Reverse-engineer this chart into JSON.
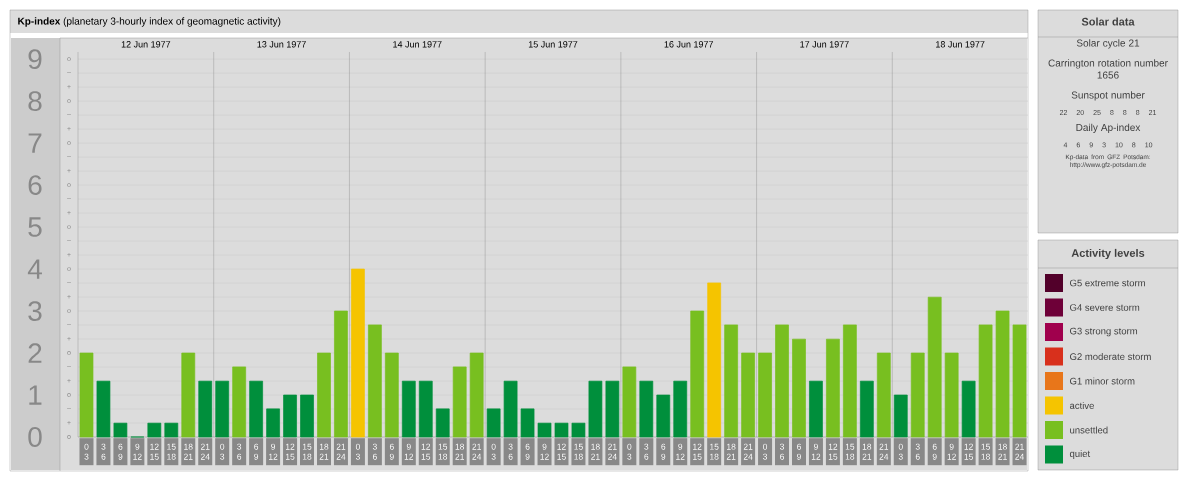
{
  "chart_data": [
    {
      "type": "bar",
      "title": "**Kp-index**  (planetary 3-hourly index of geomagnetic activity)",
      "categories": [
        "0 3",
        "3 6",
        "6 9",
        "9 12",
        "12 15",
        "15 18",
        "18 21",
        "21 24",
        "0 3",
        "3 6",
        "6 9",
        "9 12",
        "12 15",
        "15 18",
        "18 21",
        "21 24",
        "0 3",
        "3 6",
        "6 9",
        "9 12",
        "12 15",
        "15 18",
        "18 21",
        "21 24",
        "0 3",
        "3 6",
        "6 9",
        "9 12",
        "12 15",
        "15 18",
        "18 21",
        "21 24",
        "0 3",
        "3 6",
        "6 9",
        "9 12",
        "12 15",
        "15 18",
        "18 21",
        "21 24",
        "0 3",
        "3 6",
        "6 9",
        "9 12",
        "12 15",
        "15 18",
        "18 21",
        "21 24",
        "0 3",
        "3 6",
        "6 9",
        "9 12",
        "12 15",
        "15 18",
        "18 21",
        "21 24"
      ],
      "series": [
        {
          "name": "G5 extreme storm",
          "color": "#52002a",
          "values": [
            null,
            null,
            null,
            null,
            null,
            null,
            null,
            null,
            null,
            null,
            null,
            null,
            null,
            null,
            null,
            null,
            null,
            null,
            null,
            null,
            null,
            null,
            null,
            null,
            null,
            null,
            null,
            null,
            null,
            null,
            null,
            null,
            null,
            null,
            null,
            null,
            null,
            null,
            null,
            null,
            null,
            null,
            null,
            null,
            null,
            null,
            null,
            null,
            null,
            null,
            null,
            null,
            null,
            null,
            null,
            null
          ]
        },
        {
          "name": "G4 severe storm",
          "color": "#6e0038",
          "values": [
            null,
            null,
            null,
            null,
            null,
            null,
            null,
            null,
            null,
            null,
            null,
            null,
            null,
            null,
            null,
            null,
            null,
            null,
            null,
            null,
            null,
            null,
            null,
            null,
            null,
            null,
            null,
            null,
            null,
            null,
            null,
            null,
            null,
            null,
            null,
            null,
            null,
            null,
            null,
            null,
            null,
            null,
            null,
            null,
            null,
            null,
            null,
            null,
            null,
            null,
            null,
            null,
            null,
            null,
            null,
            null
          ]
        },
        {
          "name": "G3 strong storm",
          "color": "#a0004d",
          "values": [
            null,
            null,
            null,
            null,
            null,
            null,
            null,
            null,
            null,
            null,
            null,
            null,
            null,
            null,
            null,
            null,
            null,
            null,
            null,
            null,
            null,
            null,
            null,
            null,
            null,
            null,
            null,
            null,
            null,
            null,
            null,
            null,
            null,
            null,
            null,
            null,
            null,
            null,
            null,
            null,
            null,
            null,
            null,
            null,
            null,
            null,
            null,
            null,
            null,
            null,
            null,
            null,
            null,
            null,
            null,
            null
          ]
        },
        {
          "name": "G2 moderate storm",
          "color": "#d8301c",
          "values": [
            null,
            null,
            null,
            null,
            null,
            null,
            null,
            null,
            null,
            null,
            null,
            null,
            null,
            null,
            null,
            null,
            null,
            null,
            null,
            null,
            null,
            null,
            null,
            null,
            null,
            null,
            null,
            null,
            null,
            null,
            null,
            null,
            null,
            null,
            null,
            null,
            null,
            null,
            null,
            null,
            null,
            null,
            null,
            null,
            null,
            null,
            null,
            null,
            null,
            null,
            null,
            null,
            null,
            null,
            null,
            null
          ]
        },
        {
          "name": "G1 minor storm",
          "color": "#e8761a",
          "values": [
            null,
            null,
            null,
            null,
            null,
            null,
            null,
            null,
            null,
            null,
            null,
            null,
            null,
            null,
            null,
            null,
            null,
            null,
            null,
            null,
            null,
            null,
            null,
            null,
            null,
            null,
            null,
            null,
            null,
            null,
            null,
            null,
            null,
            null,
            null,
            null,
            null,
            null,
            null,
            null,
            null,
            null,
            null,
            null,
            null,
            null,
            null,
            null,
            null,
            null,
            null,
            null,
            null,
            null,
            null,
            null
          ]
        },
        {
          "name": "active",
          "color": "#f5c400",
          "values": [
            null,
            null,
            null,
            null,
            null,
            null,
            null,
            null,
            null,
            null,
            null,
            null,
            null,
            null,
            null,
            null,
            4,
            null,
            null,
            null,
            null,
            null,
            null,
            null,
            null,
            null,
            null,
            null,
            null,
            null,
            null,
            null,
            null,
            null,
            null,
            null,
            null,
            3.67,
            null,
            null,
            null,
            null,
            null,
            null,
            null,
            null,
            null,
            null,
            null,
            null,
            null,
            null,
            null,
            null,
            null,
            null
          ]
        },
        {
          "name": "unsettled",
          "color": "#78bf20",
          "values": [
            2,
            null,
            null,
            null,
            null,
            null,
            2,
            null,
            null,
            1.67,
            null,
            null,
            null,
            null,
            2,
            3,
            null,
            2.67,
            2,
            null,
            null,
            null,
            1.67,
            2,
            null,
            null,
            null,
            null,
            null,
            null,
            null,
            null,
            1.67,
            null,
            null,
            null,
            3,
            null,
            2.67,
            2,
            2,
            2.67,
            2.33,
            null,
            2.33,
            2.67,
            null,
            2,
            null,
            2,
            3.33,
            2,
            null,
            2.67,
            3,
            2.67
          ]
        },
        {
          "name": "quiet",
          "color": "#008f3c",
          "values": [
            null,
            1.33,
            0.33,
            0,
            0.33,
            0.33,
            null,
            1.33,
            1.33,
            null,
            1.33,
            0.67,
            1,
            1,
            null,
            null,
            null,
            null,
            null,
            1.33,
            1.33,
            0.67,
            null,
            null,
            0.67,
            1.33,
            0.67,
            0.33,
            0.33,
            0.33,
            1.33,
            1.33,
            null,
            1.33,
            1,
            1.33,
            null,
            null,
            null,
            null,
            null,
            null,
            null,
            1.33,
            null,
            null,
            1.33,
            null,
            1,
            null,
            null,
            null,
            1.33,
            null,
            null,
            null
          ]
        }
      ],
      "ylim": [
        0,
        9.17
      ],
      "yticks": [
        0,
        1,
        2,
        3,
        4,
        5,
        6,
        7,
        8,
        9
      ],
      "grid": true,
      "legend": "right",
      "legend_title": "Activity levels",
      "annotations": [
        "12 Jun 1977",
        "13 Jun 1977",
        "14 Jun 1977",
        "15 Jun 1977",
        "16 Jun 1977",
        "17 Jun 1977",
        "18 Jun 1977",
        "o",
        "+",
        "–",
        "o",
        "+",
        "–",
        "o",
        "+",
        "–",
        "o",
        "+",
        "–",
        "o",
        "+",
        "–",
        "o",
        "+",
        "–",
        "o",
        "+",
        "–",
        "o",
        "+",
        "–",
        "o",
        "+",
        "–",
        "o"
      ]
    },
    {
      "type": "other",
      "title": "Solar data",
      "annotations": [
        "Solar cycle 21",
        "Carrington rotation number 1656",
        "Sunspot number",
        "22 20 25 8 8 8 21",
        "Daily Ap-index",
        "4 6 9 3 10 8 10",
        "Kp-data from GFZ Potsdam: http://www.gfz-potsdam.de"
      ]
    }
  ]
}
